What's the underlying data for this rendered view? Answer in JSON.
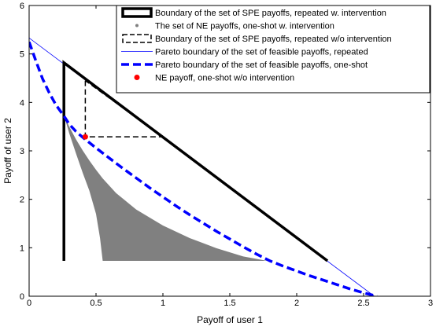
{
  "chart_data": {
    "type": "line",
    "title": "",
    "xlabel": "Payoff of user 1",
    "ylabel": "Payoff of user 2",
    "xlim": [
      0,
      3
    ],
    "ylim": [
      0,
      6
    ],
    "xticks": [
      0,
      0.5,
      1,
      1.5,
      2,
      2.5,
      3
    ],
    "xtick_labels": [
      "0",
      "0.5",
      "1",
      "1.5",
      "2",
      "2.5",
      "3"
    ],
    "yticks": [
      0,
      1,
      2,
      3,
      4,
      5,
      6
    ],
    "ytick_labels": [
      "0",
      "1",
      "2",
      "3",
      "4",
      "5",
      "6"
    ],
    "grid": false,
    "legend_position": "top-right",
    "series": [
      {
        "name": "Boundary of the set of SPE payoffs, repeated w. intervention",
        "style": "solid-thick",
        "color": "#000000",
        "x": [
          0.26,
          0.26,
          2.23,
          0.26
        ],
        "y": [
          0.73,
          4.82,
          0.73,
          4.82
        ]
      },
      {
        "name": "The set of NE payoffs, one-shot w. intervention",
        "style": "filled-dots",
        "color": "#808080",
        "x": [
          0.26,
          0.3,
          0.35,
          0.4,
          0.45,
          0.5,
          0.55,
          0.65,
          0.8,
          1.0,
          1.2,
          1.4,
          1.6,
          1.78,
          1.78,
          0.55,
          0.53,
          0.5,
          0.45,
          0.4,
          0.35,
          0.3,
          0.26
        ],
        "y": [
          3.74,
          3.5,
          3.24,
          3.01,
          2.8,
          2.61,
          2.43,
          2.13,
          1.79,
          1.46,
          1.2,
          0.99,
          0.82,
          0.73,
          0.73,
          0.73,
          1.2,
          1.7,
          2.18,
          2.55,
          2.95,
          3.36,
          3.74
        ]
      },
      {
        "name": "Boundary of the set of SPE payoffs, repeated w/o intervention",
        "style": "dashed",
        "color": "#000000",
        "x": [
          0.42,
          0.42,
          1.0,
          0.42
        ],
        "y": [
          4.45,
          3.29,
          3.29,
          4.45
        ]
      },
      {
        "name": "Pareto boundary of the set of feasible payoffs, repeated",
        "style": "solid-thin",
        "color": "#0000ff",
        "x": [
          0.0,
          2.58
        ],
        "y": [
          5.33,
          0.0
        ]
      },
      {
        "name": "Pareto boundary of the set of feasible payoffs, one-shot",
        "style": "dashed-thick",
        "color": "#0000ff",
        "x": [
          0.0,
          0.05,
          0.1,
          0.15,
          0.2,
          0.26,
          0.3,
          0.35,
          0.4,
          0.45,
          0.5,
          0.6,
          0.7,
          0.8,
          0.9,
          1.0,
          1.1,
          1.2,
          1.3,
          1.4,
          1.5,
          1.6,
          1.7,
          1.8,
          1.9,
          2.0,
          2.1,
          2.2,
          2.3,
          2.4,
          2.5,
          2.6
        ],
        "y": [
          5.25,
          4.86,
          4.49,
          4.2,
          3.95,
          3.72,
          3.55,
          3.4,
          3.28,
          3.17,
          3.06,
          2.85,
          2.64,
          2.44,
          2.24,
          2.05,
          1.86,
          1.68,
          1.51,
          1.34,
          1.18,
          1.02,
          0.87,
          0.73,
          0.62,
          0.52,
          0.42,
          0.33,
          0.24,
          0.15,
          0.07,
          0.0
        ]
      },
      {
        "name": "NE payoff, one-shot w/o intervention",
        "style": "marker",
        "color": "#ff0000",
        "x": [
          0.42
        ],
        "y": [
          3.29
        ]
      }
    ]
  }
}
